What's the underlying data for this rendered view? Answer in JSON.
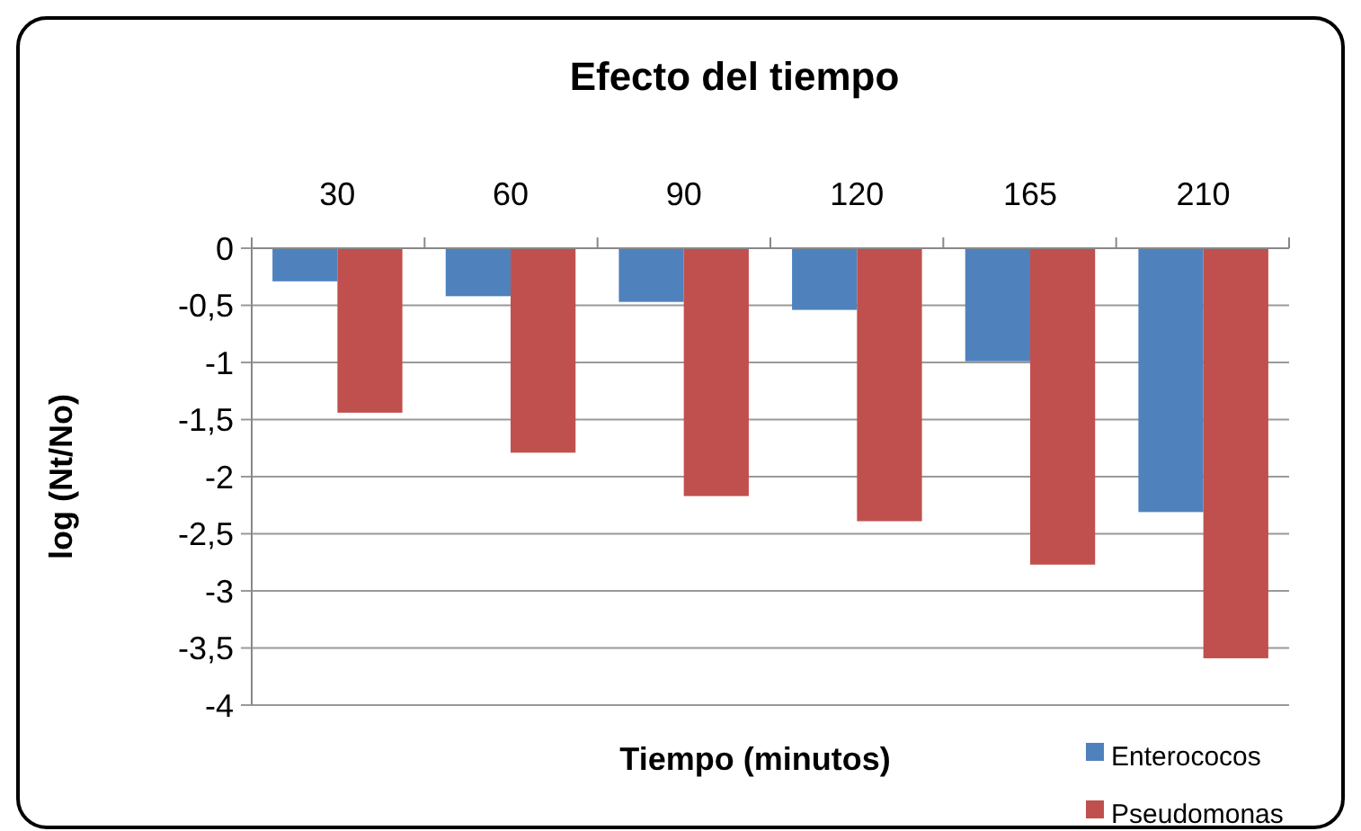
{
  "chart_data": {
    "type": "bar",
    "title": "Efecto del tiempo",
    "xlabel": "Tiempo (minutos)",
    "ylabel": "log (Nt/No)",
    "categories": [
      "30",
      "60",
      "90",
      "120",
      "165",
      "210"
    ],
    "series": [
      {
        "name": "Enterococos",
        "color": "#4f81bd",
        "values": [
          -0.29,
          -0.42,
          -0.47,
          -0.54,
          -0.99,
          -2.31
        ]
      },
      {
        "name": "Pseudomonas",
        "color": "#c0504d",
        "values": [
          -1.44,
          -1.79,
          -2.17,
          -2.39,
          -2.77,
          -3.59
        ]
      }
    ],
    "ylim": [
      -4,
      0
    ],
    "yticks": [
      {
        "value": 0,
        "label": "0"
      },
      {
        "value": -0.5,
        "label": "-0,5"
      },
      {
        "value": -1,
        "label": "-1"
      },
      {
        "value": -1.5,
        "label": "-1,5"
      },
      {
        "value": -2,
        "label": "-2"
      },
      {
        "value": -2.5,
        "label": "-2,5"
      },
      {
        "value": -3,
        "label": "-3"
      },
      {
        "value": -3.5,
        "label": "-3,5"
      },
      {
        "value": -4,
        "label": "-4"
      }
    ],
    "grid": "y",
    "legend": "bottom right"
  }
}
